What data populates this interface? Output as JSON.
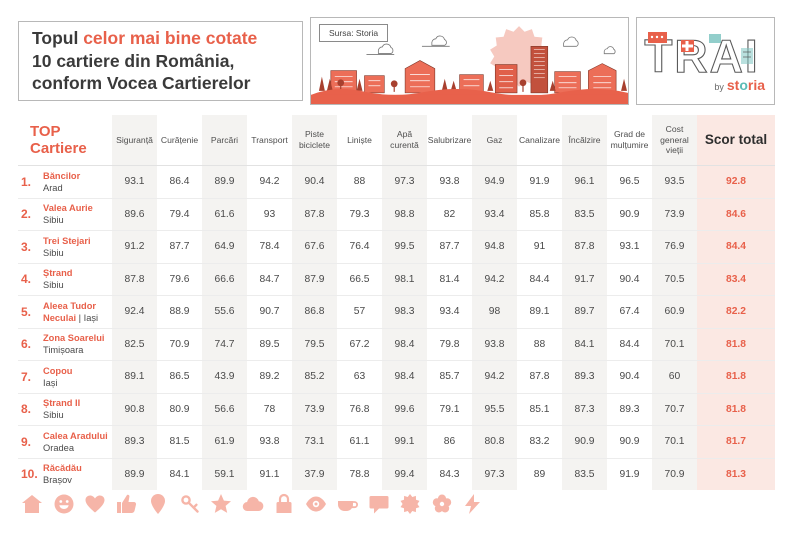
{
  "header": {
    "title_prefix": "Topul ",
    "title_highlight": "celor mai bine cotate",
    "title_line2": "10 cartiere din România,",
    "title_line3": "conform Vocea Cartierelor",
    "source_label": "Sursa: Storia",
    "logo": {
      "word": "TRAI",
      "by_label": "by",
      "brand_pre": "st",
      "brand_o": "o",
      "brand_post": "ria"
    }
  },
  "table": {
    "top_label_line1": "TOP",
    "top_label_line2": "Cartiere",
    "columns": [
      "Siguranță",
      "Curățenie",
      "Parcări",
      "Transport",
      "Piste biciclete",
      "Liniște",
      "Apă curentă",
      "Salubrizare",
      "Gaz",
      "Canalizare",
      "Încălzire",
      "Grad de mulțumire",
      "Cost general vieții"
    ],
    "total_header": "Scor total",
    "rows": [
      {
        "rank": "1.",
        "name": "Băncilor",
        "city": "Arad",
        "inline_city": false,
        "values": [
          "93.1",
          "86.4",
          "89.9",
          "94.2",
          "90.4",
          "88",
          "97.3",
          "93.8",
          "94.9",
          "91.9",
          "96.1",
          "96.5",
          "93.5"
        ],
        "total": "92.8"
      },
      {
        "rank": "2.",
        "name": "Valea Aurie",
        "city": "Sibiu",
        "inline_city": false,
        "values": [
          "89.6",
          "79.4",
          "61.6",
          "93",
          "87.8",
          "79.3",
          "98.8",
          "82",
          "93.4",
          "85.8",
          "83.5",
          "90.9",
          "73.9"
        ],
        "total": "84.6"
      },
      {
        "rank": "3.",
        "name": "Trei Stejari",
        "city": "Sibiu",
        "inline_city": false,
        "values": [
          "91.2",
          "87.7",
          "64.9",
          "78.4",
          "67.6",
          "76.4",
          "99.5",
          "87.7",
          "94.8",
          "91",
          "87.8",
          "93.1",
          "76.9"
        ],
        "total": "84.4"
      },
      {
        "rank": "4.",
        "name": "Ștrand",
        "city": "Sibiu",
        "inline_city": false,
        "values": [
          "87.8",
          "79.6",
          "66.6",
          "84.7",
          "87.9",
          "66.5",
          "98.1",
          "81.4",
          "94.2",
          "84.4",
          "91.7",
          "90.4",
          "70.5"
        ],
        "total": "83.4"
      },
      {
        "rank": "5.",
        "name": "Aleea Tudor Neculai",
        "city": "Iași",
        "inline_city": true,
        "values": [
          "92.4",
          "88.9",
          "55.6",
          "90.7",
          "86.8",
          "57",
          "98.3",
          "93.4",
          "98",
          "89.1",
          "89.7",
          "67.4",
          "60.9"
        ],
        "total": "82.2"
      },
      {
        "rank": "6.",
        "name": "Zona Soarelui",
        "city": "Timișoara",
        "inline_city": false,
        "values": [
          "82.5",
          "70.9",
          "74.7",
          "89.5",
          "79.5",
          "67.2",
          "98.4",
          "79.8",
          "93.8",
          "88",
          "84.1",
          "84.4",
          "70.1"
        ],
        "total": "81.8"
      },
      {
        "rank": "7.",
        "name": "Copou",
        "city": "Iași",
        "inline_city": false,
        "values": [
          "89.1",
          "86.5",
          "43.9",
          "89.2",
          "85.2",
          "63",
          "98.4",
          "85.7",
          "94.2",
          "87.8",
          "89.3",
          "90.4",
          "60"
        ],
        "total": "81.8"
      },
      {
        "rank": "8.",
        "name": "Ștrand II",
        "city": "Sibiu",
        "inline_city": false,
        "values": [
          "90.8",
          "80.9",
          "56.6",
          "78",
          "73.9",
          "76.8",
          "99.6",
          "79.1",
          "95.5",
          "85.1",
          "87.3",
          "89.3",
          "70.7"
        ],
        "total": "81.8"
      },
      {
        "rank": "9.",
        "name": "Calea Aradului",
        "city": "Oradea",
        "inline_city": false,
        "values": [
          "89.3",
          "81.5",
          "61.9",
          "93.8",
          "73.1",
          "61.1",
          "99.1",
          "86",
          "80.8",
          "83.2",
          "90.9",
          "90.9",
          "70.1"
        ],
        "total": "81.7"
      },
      {
        "rank": "10.",
        "name": "Răcădău",
        "city": "Brașov",
        "inline_city": false,
        "values": [
          "89.9",
          "84.1",
          "59.1",
          "91.1",
          "37.9",
          "78.8",
          "99.4",
          "84.3",
          "97.3",
          "89",
          "83.5",
          "91.9",
          "70.9"
        ],
        "total": "81.3"
      }
    ]
  },
  "footer_icons": [
    "house-icon",
    "smiley-icon",
    "heart-icon",
    "thumbs-up-icon",
    "pin-icon",
    "key-icon",
    "star-icon",
    "cloud-icon",
    "lock-icon",
    "eye-icon",
    "cup-icon",
    "speech-bubble-icon",
    "sun-icon",
    "flower-icon",
    "lightning-icon"
  ],
  "colors": {
    "accent": "#e8604a",
    "dark_text": "#3a3a3a",
    "stripe": "#f4f3f1",
    "total_bg": "#fbe8e3",
    "footer_icon": "#f6b5a8",
    "teal": "#5bbcb6",
    "sun": "#f6c9c0"
  }
}
